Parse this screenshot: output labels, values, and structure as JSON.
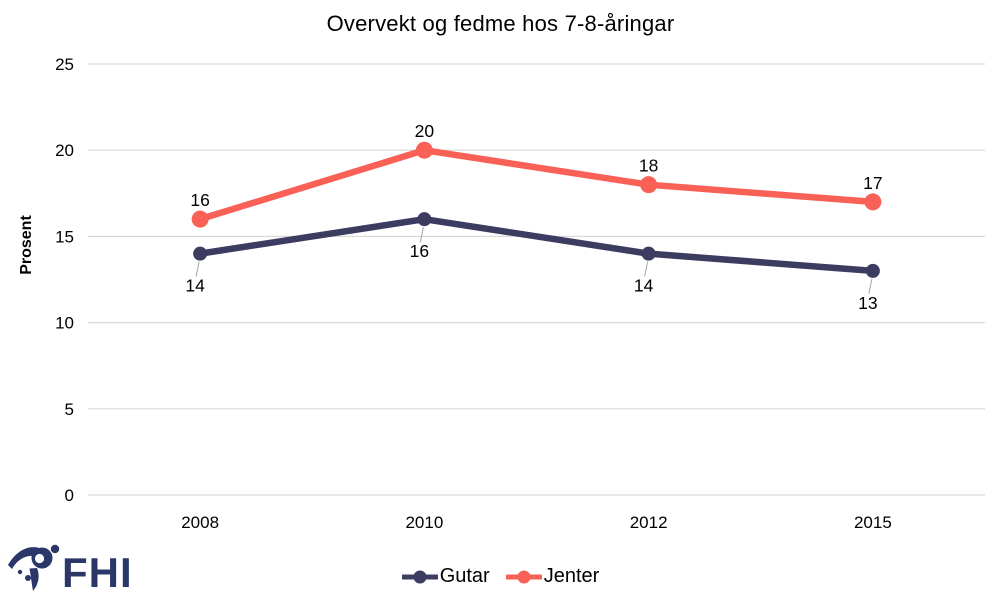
{
  "chart_data": {
    "type": "line",
    "title": "Overvekt og fedme hos 7-8-åringar",
    "ylabel": "Prosent",
    "xlabel": "",
    "categories": [
      "2008",
      "2010",
      "2012",
      "2015"
    ],
    "yticks": [
      0,
      5,
      10,
      15,
      20,
      25
    ],
    "ylim": [
      0,
      25
    ],
    "grid": true,
    "legend_position": "bottom-center",
    "series": [
      {
        "name": "Gutar",
        "values": [
          14,
          16,
          14,
          13
        ],
        "color": "#3C3B60",
        "label_placement": "below"
      },
      {
        "name": "Jenter",
        "values": [
          16,
          20,
          18,
          17
        ],
        "color": "#F96157",
        "label_placement": "above"
      }
    ]
  },
  "footer": {
    "logo_text": "FHI",
    "logo_icon": "fhi-swoosh-figure-icon"
  },
  "colors": {
    "gridline": "#D9D9D9",
    "leader": "#A6A6A6",
    "text": "#000000",
    "logo": "#2B3769"
  }
}
